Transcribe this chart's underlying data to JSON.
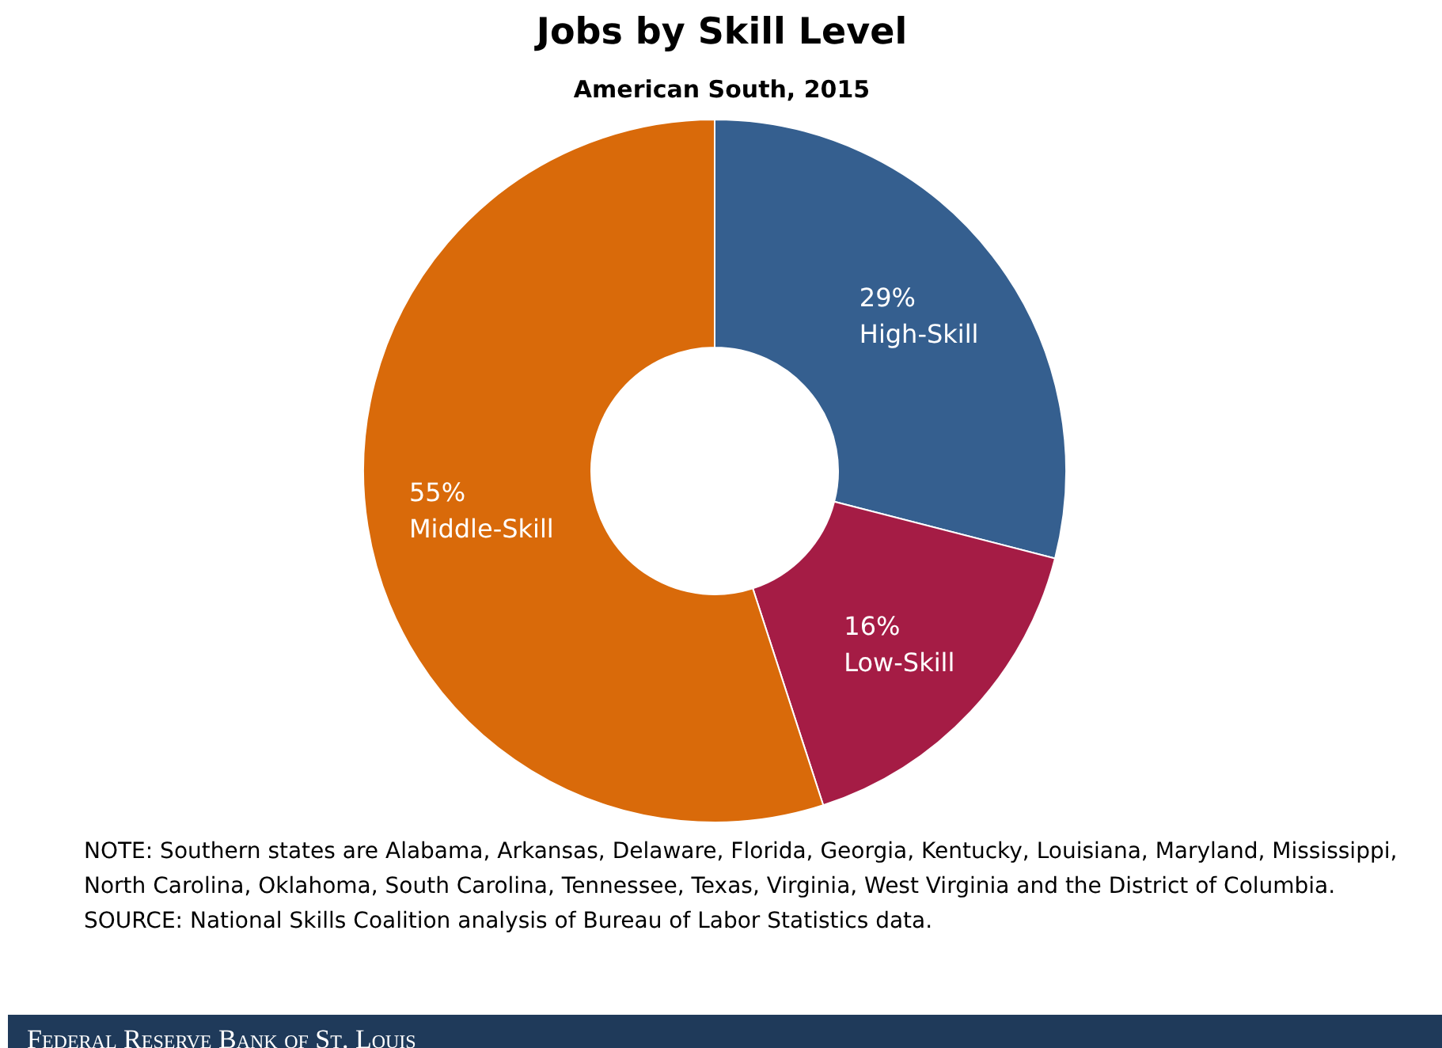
{
  "chart_data": {
    "type": "donut",
    "title": "Jobs by Skill Level",
    "subtitle": "American South, 2015",
    "categories": [
      "High-Skill",
      "Low-Skill",
      "Middle-Skill"
    ],
    "values": [
      29,
      16,
      55
    ],
    "colors": [
      "#355f8f",
      "#a51c45",
      "#d96a0a"
    ],
    "value_labels": [
      "29%",
      "16%",
      "55%"
    ],
    "annotations": [
      "NOTE: Southern states are Alabama, Arkansas, Delaware, Florida, Georgia, Kentucky, Louisiana, Maryland, Mississippi, North Carolina, Oklahoma, South Carolina, Tennessee, Texas, Virginia, West Virginia and the District of Columbia.",
      "SOURCE: National Skills Coalition analysis of Bureau of Labor Statistics data.",
      "Federal Reserve Bank of St. Louis"
    ]
  }
}
